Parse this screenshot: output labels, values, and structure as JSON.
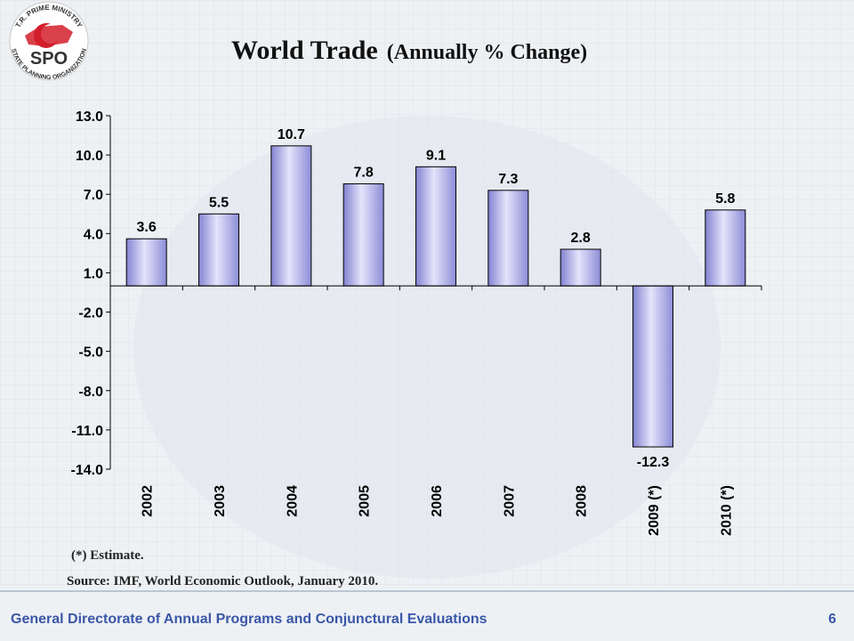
{
  "logo": {
    "top": "T.R. PRIME MINISTRY",
    "bottom": "STATE PLANNING ORGANIZATION",
    "abbr": "SPO"
  },
  "chart_data": {
    "type": "bar",
    "title": "World Trade",
    "subtitle": "(Annually % Change)",
    "categories": [
      "2002",
      "2003",
      "2004",
      "2005",
      "2006",
      "2007",
      "2008",
      "2009 (*)",
      "2010 (*)"
    ],
    "values": [
      3.6,
      5.5,
      10.7,
      7.8,
      9.1,
      7.3,
      2.8,
      -12.3,
      5.8
    ],
    "color": "#9c9ce8",
    "ylim": [
      -14,
      13
    ],
    "yticks": [
      {
        "value": -14,
        "label": "-14.0"
      },
      {
        "value": -11,
        "label": "-11.0"
      },
      {
        "value": -8,
        "label": "-8.0"
      },
      {
        "value": -5,
        "label": "-5.0"
      },
      {
        "value": -2,
        "label": "-2.0"
      },
      {
        "value": 1,
        "label": "1.0"
      },
      {
        "value": 4,
        "label": "4.0"
      },
      {
        "value": 7,
        "label": "7.0"
      },
      {
        "value": 10,
        "label": "10.0"
      },
      {
        "value": 13,
        "label": "13.0"
      }
    ],
    "grid": false
  },
  "notes": [
    "(*) Estimate.",
    "Source: IMF, World Economic Outlook, January 2010."
  ],
  "footer": {
    "text": "General Directorate of Annual Programs and Conjunctural Evaluations",
    "page": "6"
  }
}
